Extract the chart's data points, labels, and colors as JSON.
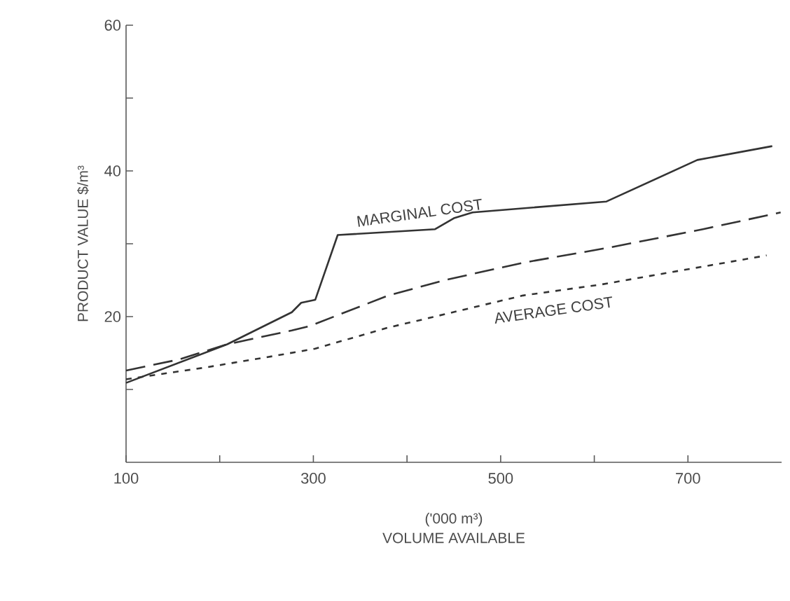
{
  "chart_data": {
    "type": "line",
    "xlabel": "VOLUME AVAILABLE",
    "ylabel": "PRODUCT VALUE $/m³",
    "annotations": [
      "('000 m³)"
    ],
    "xlim": [
      100,
      800
    ],
    "xticks": [
      100,
      {
        "value": 200,
        "label": null
      },
      300,
      {
        "value": 400,
        "label": null
      },
      500,
      {
        "value": 600,
        "label": null
      },
      700
    ],
    "ylim": [
      0,
      60
    ],
    "yticks": [
      {
        "value": 10,
        "label": null
      },
      20,
      {
        "value": 30,
        "label": null
      },
      40,
      {
        "value": 50,
        "label": null
      },
      60
    ],
    "series": [
      {
        "name": "MARGINAL COST",
        "color": "#333333",
        "line_style": "solid",
        "x": [
          100,
          208,
          277,
          287,
          302,
          326,
          430,
          450,
          470,
          613,
          710,
          790
        ],
        "values": [
          10.9,
          16.2,
          20.6,
          21.9,
          22.3,
          31.2,
          32,
          33.5,
          34.3,
          35.8,
          41.5,
          43.4
        ]
      },
      {
        "color": "#333333",
        "line_style": "dashed",
        "x": [
          100,
          156,
          208,
          277,
          296,
          380,
          440,
          524,
          617,
          716,
          799
        ],
        "values": [
          12.6,
          14.1,
          16.2,
          18.1,
          18.7,
          22.9,
          25,
          27.4,
          29.5,
          32,
          34.3
        ]
      },
      {
        "name": "AVERAGE COST",
        "color": "#333333",
        "line_style": "dotted",
        "x": [
          100,
          184,
          258,
          302,
          380,
          410,
          524,
          607,
          784
        ],
        "values": [
          11.4,
          13,
          14.6,
          15.6,
          18.5,
          19.4,
          22.9,
          24.4,
          28.4
        ]
      }
    ]
  }
}
